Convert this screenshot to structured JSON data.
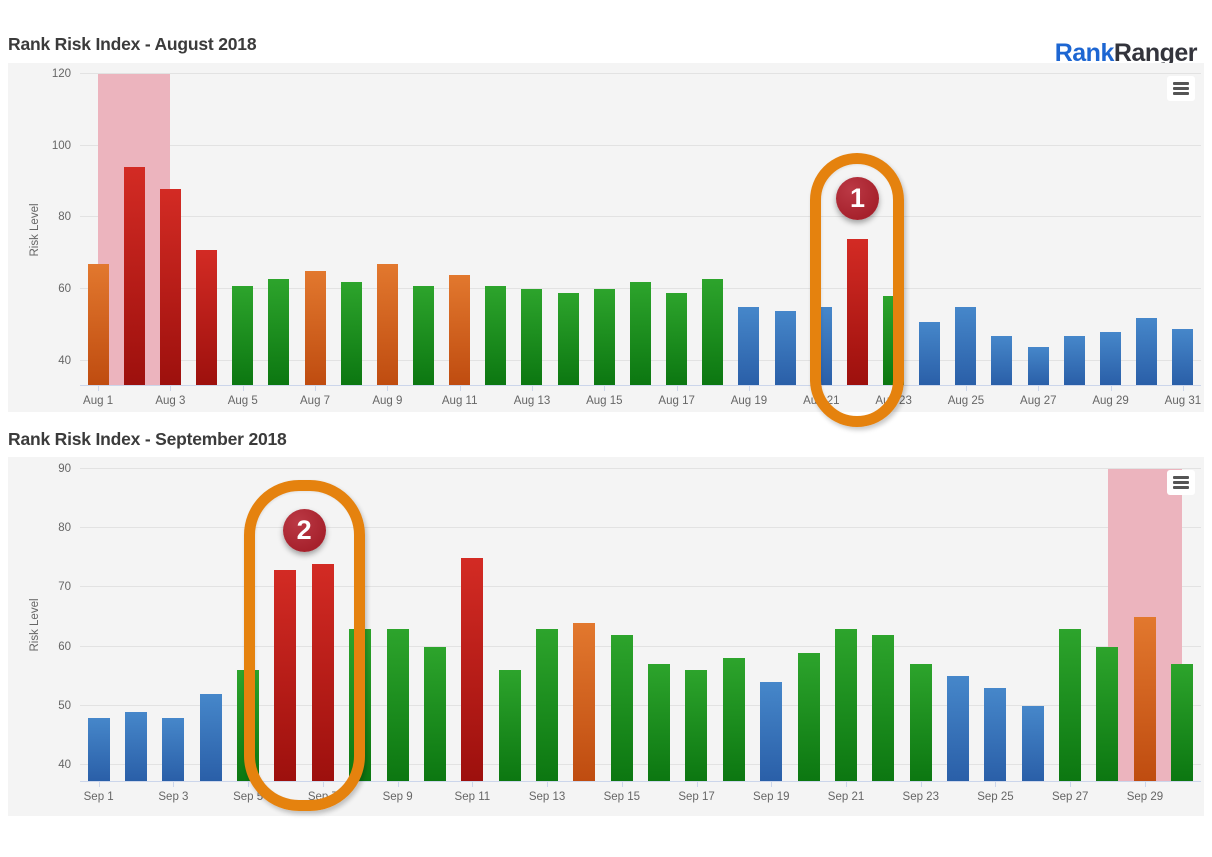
{
  "logo": {
    "part1": "Rank",
    "part2": "Ranger"
  },
  "colors": {
    "levels": {
      "blue": {
        "top": "#4687ca",
        "bottom": "#2a5fa8"
      },
      "green": {
        "top": "#2da42c",
        "bottom": "#0c7711"
      },
      "orange": {
        "top": "#e2782e",
        "bottom": "#bf4c10"
      },
      "red": {
        "top": "#d32b24",
        "bottom": "#9d100d"
      }
    },
    "plot_band": "#ecb4be",
    "annotation_ring": "#e5820e",
    "annotation_badge": "#a6212c",
    "logo_blue": "#1d66d2",
    "logo_dark": "#33343c",
    "title_text": "#3b3b3b",
    "axis_text": "#666666",
    "axis_line": "#ccd6eb",
    "chart_bg": "#f4f4f4",
    "gridline": "#e2e2e2"
  },
  "chart_data": [
    {
      "type": "bar",
      "title": "Rank Risk Index - August 2018",
      "ylabel": "Risk Level",
      "ylim": [
        33.3,
        120
      ],
      "yticks": [
        40,
        60,
        80,
        100,
        120
      ],
      "grid": true,
      "legend": false,
      "categories": [
        "Aug 1",
        "Aug 2",
        "Aug 3",
        "Aug 4",
        "Aug 5",
        "Aug 6",
        "Aug 7",
        "Aug 8",
        "Aug 9",
        "Aug 10",
        "Aug 11",
        "Aug 12",
        "Aug 13",
        "Aug 14",
        "Aug 15",
        "Aug 16",
        "Aug 17",
        "Aug 18",
        "Aug 19",
        "Aug 20",
        "Aug 21",
        "Aug 22",
        "Aug 23",
        "Aug 24",
        "Aug 25",
        "Aug 26",
        "Aug 27",
        "Aug 28",
        "Aug 29",
        "Aug 30",
        "Aug 31"
      ],
      "values": [
        67,
        94,
        88,
        71,
        61,
        63,
        65,
        62,
        67,
        61,
        64,
        61,
        60,
        59,
        60,
        62,
        59,
        63,
        55,
        54,
        55,
        74,
        58,
        51,
        55,
        47,
        44,
        47,
        48,
        52,
        49
      ],
      "levels": [
        "orange",
        "red",
        "red",
        "red",
        "green",
        "green",
        "orange",
        "green",
        "orange",
        "green",
        "orange",
        "green",
        "green",
        "green",
        "green",
        "green",
        "green",
        "green",
        "blue",
        "blue",
        "blue",
        "red",
        "green",
        "blue",
        "blue",
        "blue",
        "blue",
        "blue",
        "blue",
        "blue",
        "blue"
      ],
      "xtick_labels": [
        "Aug 1",
        "Aug 3",
        "Aug 5",
        "Aug 7",
        "Aug 9",
        "Aug 11",
        "Aug 13",
        "Aug 15",
        "Aug 17",
        "Aug 19",
        "Aug 21",
        "Aug 23",
        "Aug 25",
        "Aug 27",
        "Aug 29",
        "Aug 31"
      ],
      "plot_band": {
        "from_label": "Aug 1",
        "to_label": "Aug 3",
        "from_index": 0,
        "to_index": 2
      },
      "annotation": {
        "badge": "1",
        "highlighted_labels": [
          "Aug 22"
        ],
        "from_index": 21,
        "to_index": 21
      }
    },
    {
      "type": "bar",
      "title": "Rank Risk Index - September 2018",
      "ylabel": "Risk Level",
      "ylim": [
        37.3,
        90
      ],
      "yticks": [
        40,
        50,
        60,
        70,
        80,
        90
      ],
      "grid": true,
      "legend": false,
      "categories": [
        "Sep 1",
        "Sep 2",
        "Sep 3",
        "Sep 4",
        "Sep 5",
        "Sep 6",
        "Sep 7",
        "Sep 8",
        "Sep 9",
        "Sep 10",
        "Sep 11",
        "Sep 12",
        "Sep 13",
        "Sep 14",
        "Sep 15",
        "Sep 16",
        "Sep 17",
        "Sep 18",
        "Sep 19",
        "Sep 20",
        "Sep 21",
        "Sep 22",
        "Sep 23",
        "Sep 24",
        "Sep 25",
        "Sep 26",
        "Sep 27",
        "Sep 28",
        "Sep 29",
        "Sep 30"
      ],
      "values": [
        48,
        49,
        48,
        52,
        56,
        73,
        74,
        63,
        63,
        60,
        75,
        56,
        63,
        64,
        62,
        57,
        56,
        58,
        54,
        59,
        63,
        62,
        57,
        55,
        53,
        50,
        63,
        60,
        65,
        57
      ],
      "levels": [
        "blue",
        "blue",
        "blue",
        "blue",
        "green",
        "red",
        "red",
        "green",
        "green",
        "green",
        "red",
        "green",
        "green",
        "orange",
        "green",
        "green",
        "green",
        "green",
        "blue",
        "green",
        "green",
        "green",
        "green",
        "blue",
        "blue",
        "blue",
        "green",
        "green",
        "orange",
        "green"
      ],
      "xtick_labels": [
        "Sep 1",
        "Sep 3",
        "Sep 5",
        "Sep 7",
        "Sep 9",
        "Sep 11",
        "Sep 13",
        "Sep 15",
        "Sep 17",
        "Sep 19",
        "Sep 21",
        "Sep 23",
        "Sep 25",
        "Sep 27",
        "Sep 29"
      ],
      "plot_band": {
        "from_label": "Sep 28",
        "to_label": "Sep 30",
        "from_index": 27,
        "to_index": 29
      },
      "annotation": {
        "badge": "2",
        "highlighted_labels": [
          "Sep 6",
          "Sep 7"
        ],
        "from_index": 5,
        "to_index": 6
      }
    }
  ]
}
